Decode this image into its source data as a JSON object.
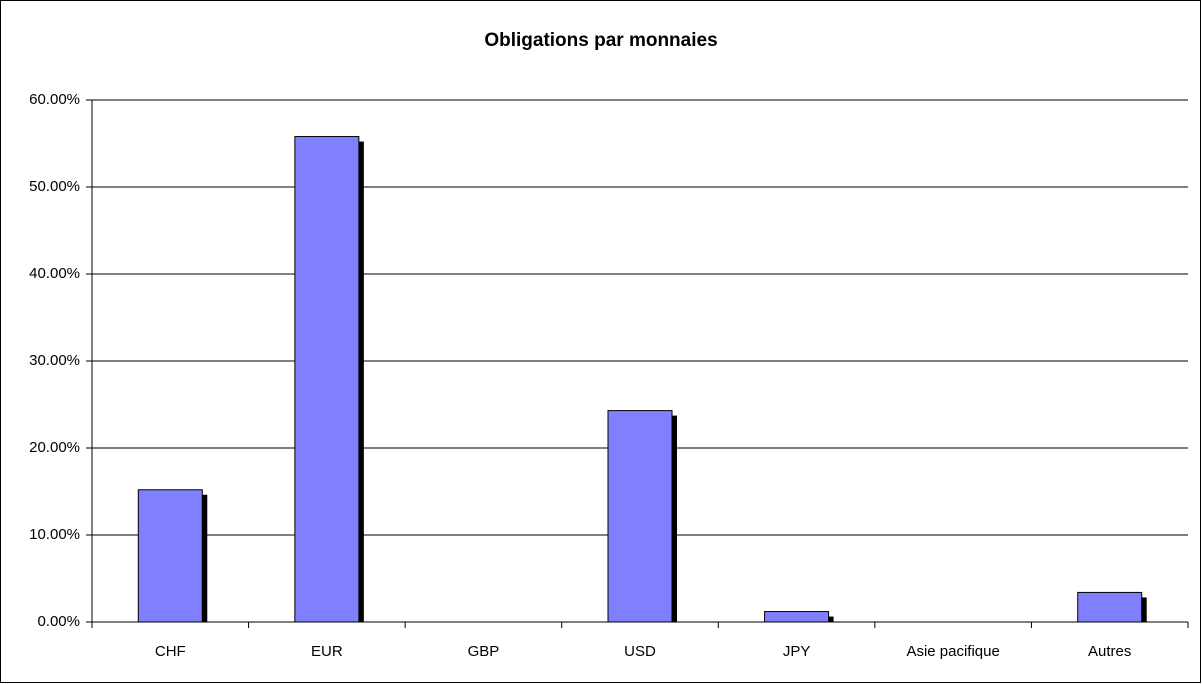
{
  "chart_data": {
    "type": "bar",
    "title": "Obligations par monnaies",
    "categories": [
      "CHF",
      "EUR",
      "GBP",
      "USD",
      "JPY",
      "Asie pacifique",
      "Autres"
    ],
    "values": [
      15.2,
      55.8,
      0,
      24.3,
      1.2,
      0,
      3.4
    ],
    "color": "#8080ff",
    "ylim": [
      0,
      60
    ],
    "yticks": [
      {
        "value": 0,
        "label": "0.00%"
      },
      {
        "value": 10,
        "label": "10.00%"
      },
      {
        "value": 20,
        "label": "20.00%"
      },
      {
        "value": 30,
        "label": "30.00%"
      },
      {
        "value": 40,
        "label": "40.00%"
      },
      {
        "value": 50,
        "label": "50.00%"
      },
      {
        "value": 60,
        "label": "60.00%"
      }
    ],
    "grid": true
  }
}
